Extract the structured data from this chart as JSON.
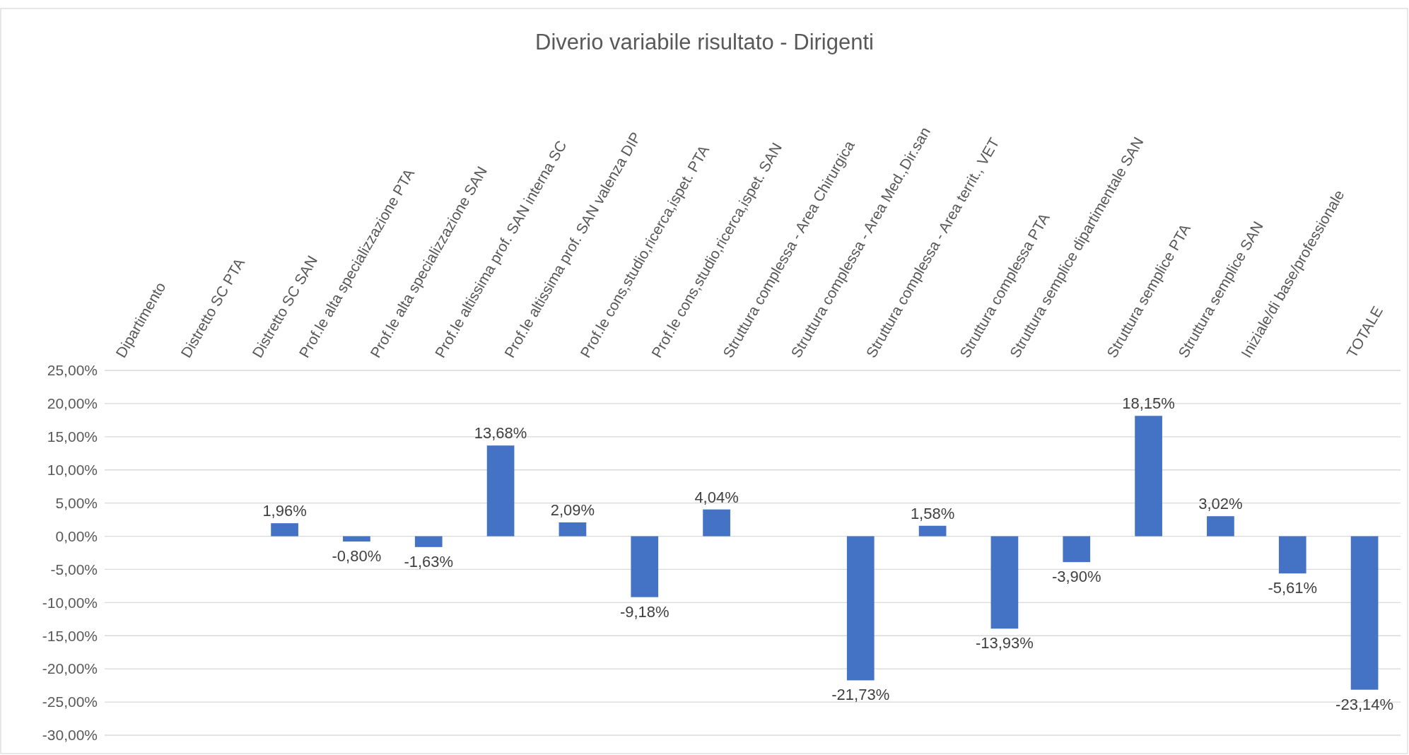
{
  "chart_data": {
    "type": "bar",
    "title": "Diverio variabile risultato - Dirigenti",
    "categories": [
      "Dipartimento",
      "Distretto SC PTA",
      "Distretto SC SAN",
      "Prof.le alta specializzazione PTA",
      "Prof.le alta specializzazione SAN",
      "Prof.le altissima prof. SAN interna SC",
      "Prof.le altissima prof. SAN valenza DIP",
      "Prof.le cons,studio,ricerca,ispet. PTA",
      "Prof.le cons,studio,ricerca,ispet. SAN",
      "Struttura complessa - Area Chirurgica",
      "Struttura complessa - Area Med.,Dir.san",
      "Struttura complessa - Area territ., VET",
      "Struttura complessa PTA",
      "Struttura semplice dipartimentale SAN",
      "Struttura semplice PTA",
      "Struttura semplice SAN",
      "Iniziale/di base/professionale",
      "TOTALE"
    ],
    "values": [
      null,
      null,
      1.96,
      -0.8,
      -1.63,
      13.68,
      2.09,
      -9.18,
      4.04,
      null,
      -21.73,
      1.58,
      -13.93,
      -3.9,
      18.15,
      3.02,
      -5.61,
      -23.14
    ],
    "value_labels": [
      null,
      null,
      "1,96%",
      "-0,80%",
      "-1,63%",
      "13,68%",
      "2,09%",
      "-9,18%",
      "4,04%",
      null,
      "-21,73%",
      "1,58%",
      "-13,93%",
      "-3,90%",
      "18,15%",
      "3,02%",
      "-5,61%",
      "-23,14%"
    ],
    "color": "#4472c4",
    "ylim": [
      -30,
      25
    ],
    "yticks": [
      {
        "value": -30,
        "label": "-30,00%"
      },
      {
        "value": -25,
        "label": "-25,00%"
      },
      {
        "value": -20,
        "label": "-20,00%"
      },
      {
        "value": -15,
        "label": "-15,00%"
      },
      {
        "value": -10,
        "label": "-10,00%"
      },
      {
        "value": -5,
        "label": "-5,00%"
      },
      {
        "value": 0,
        "label": "0,00%"
      },
      {
        "value": 5,
        "label": "5,00%"
      },
      {
        "value": 10,
        "label": "10,00%"
      },
      {
        "value": 15,
        "label": "15,00%"
      },
      {
        "value": 20,
        "label": "20,00%"
      },
      {
        "value": 25,
        "label": "25,00%"
      }
    ],
    "grid": "y"
  }
}
